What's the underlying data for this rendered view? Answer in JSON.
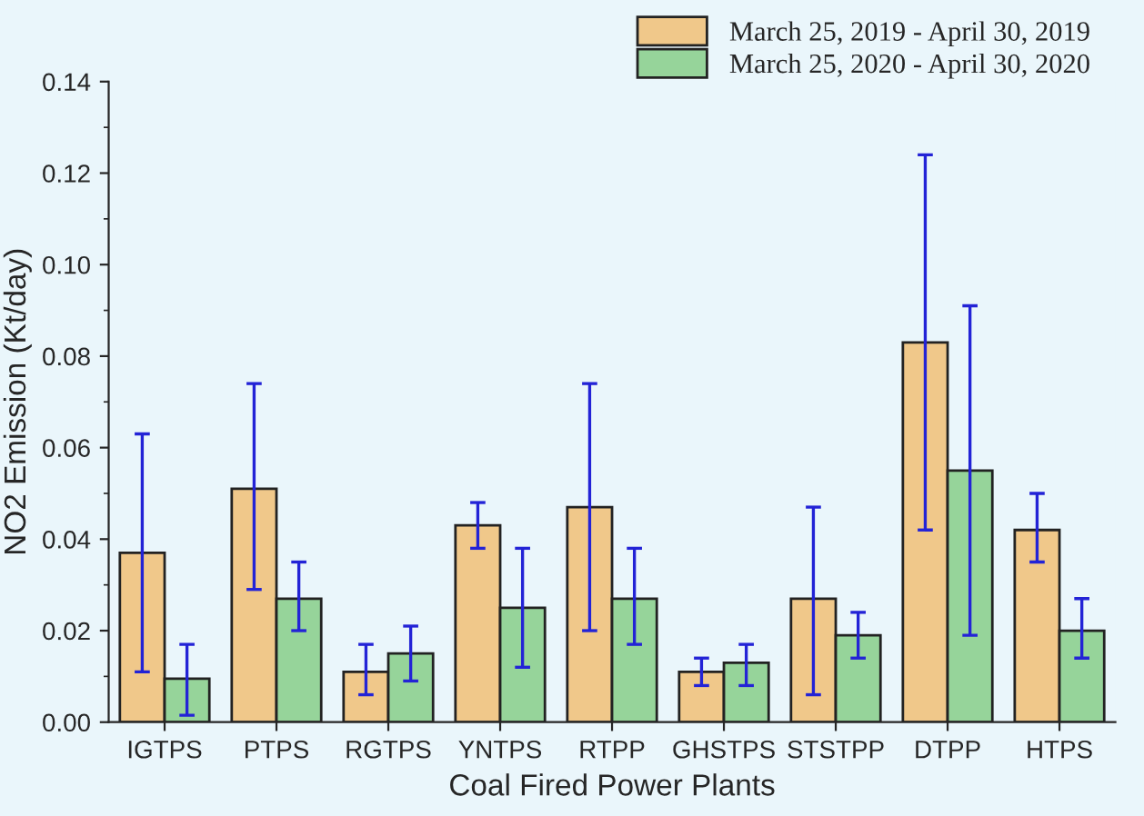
{
  "chart_data": {
    "type": "bar",
    "xlabel": "Coal Fired Power Plants",
    "ylabel": "NO2 Emission (Kt/day)",
    "categories": [
      "IGTPS",
      "PTPS",
      "RGTPS",
      "YNTPS",
      "RTPP",
      "GHSTPS",
      "STSTPP",
      "DTPP",
      "HTPS"
    ],
    "series": [
      {
        "name": "March 25, 2019 - April 30, 2019",
        "color": "#f0c88a",
        "values": [
          0.037,
          0.051,
          0.011,
          0.043,
          0.047,
          0.011,
          0.027,
          0.083,
          0.042
        ],
        "errors": [
          [
            0.011,
            0.063
          ],
          [
            0.029,
            0.074
          ],
          [
            0.006,
            0.017
          ],
          [
            0.038,
            0.048
          ],
          [
            0.02,
            0.074
          ],
          [
            0.008,
            0.014
          ],
          [
            0.006,
            0.047
          ],
          [
            0.042,
            0.124
          ],
          [
            0.035,
            0.05
          ]
        ]
      },
      {
        "name": "March 25, 2020 - April 30, 2020",
        "color": "#96d49a",
        "values": [
          0.0095,
          0.027,
          0.015,
          0.025,
          0.027,
          0.013,
          0.019,
          0.055,
          0.02
        ],
        "errors": [
          [
            0.0015,
            0.017
          ],
          [
            0.02,
            0.035
          ],
          [
            0.009,
            0.021
          ],
          [
            0.012,
            0.038
          ],
          [
            0.017,
            0.038
          ],
          [
            0.008,
            0.017
          ],
          [
            0.014,
            0.024
          ],
          [
            0.019,
            0.091
          ],
          [
            0.014,
            0.027
          ]
        ]
      }
    ],
    "ylim": [
      0,
      0.14
    ],
    "yticks": [
      {
        "value": 0,
        "label": "0.00"
      },
      {
        "value": 0.02,
        "label": "0.02"
      },
      {
        "value": 0.04,
        "label": "0.04"
      },
      {
        "value": 0.06,
        "label": "0.06"
      },
      {
        "value": 0.08,
        "label": "0.08"
      },
      {
        "value": 0.1,
        "label": "0.10"
      },
      {
        "value": 0.12,
        "label": "0.12"
      },
      {
        "value": 0.14,
        "label": "0.14"
      }
    ],
    "grid": false,
    "legend": "top right"
  }
}
